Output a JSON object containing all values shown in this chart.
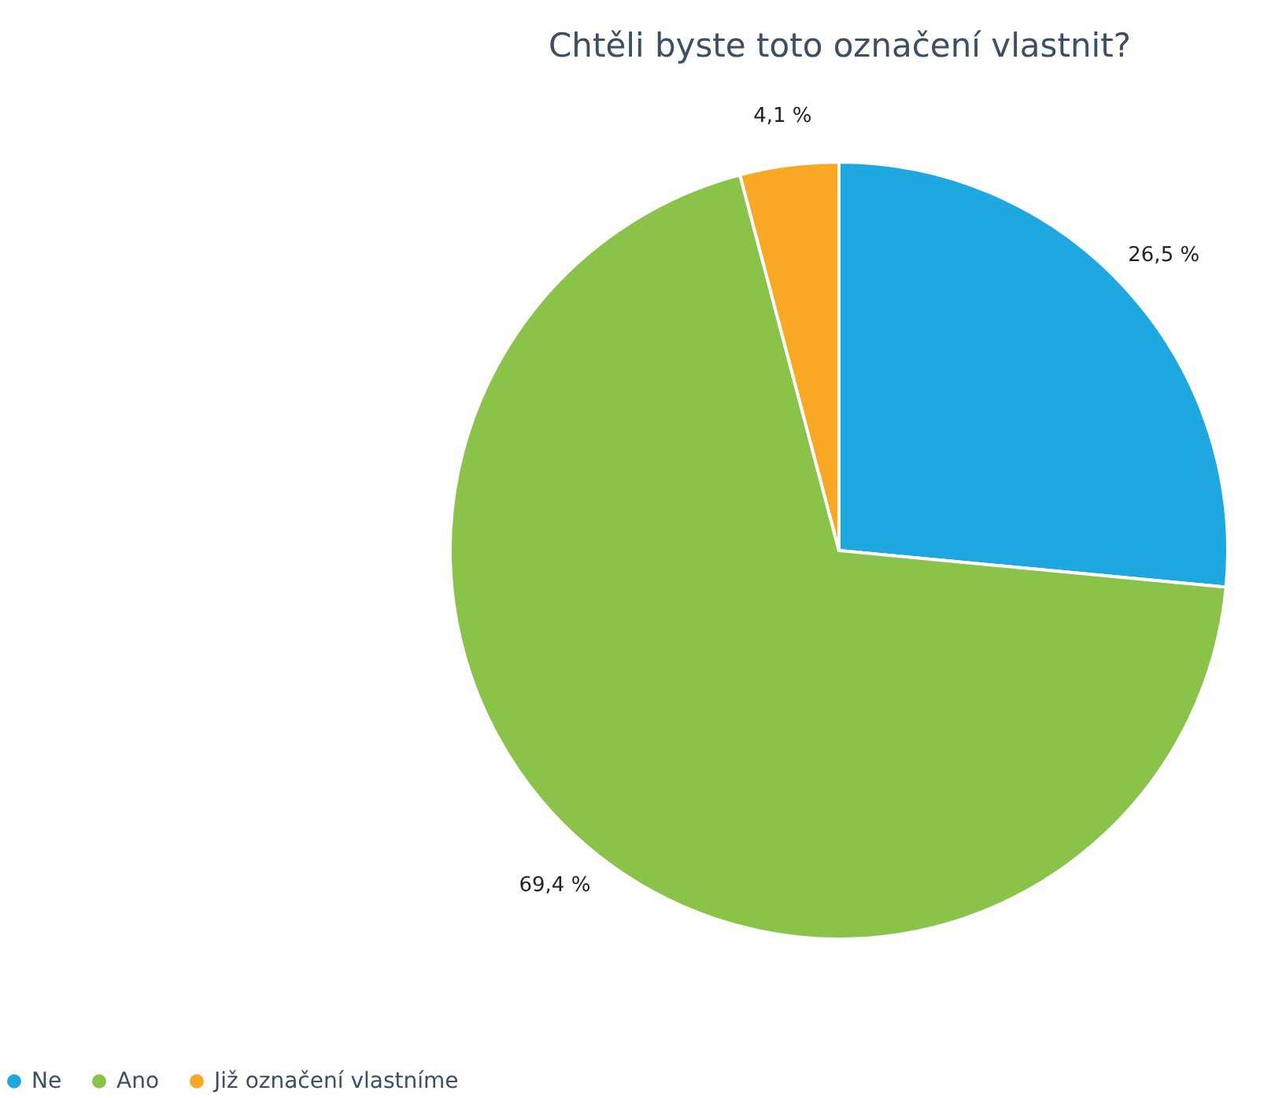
{
  "chart_data": {
    "type": "pie",
    "title": "Chtěli byste toto označení vlastnit?",
    "categories": [
      "Ne",
      "Ano",
      "Již označení vlastníme"
    ],
    "values": [
      26.5,
      69.4,
      4.1
    ],
    "colors": [
      "#1fa8e0",
      "#8bc34a",
      "#f9a825"
    ],
    "value_labels": [
      "26,5 %",
      "69,4 %",
      "4,1 %"
    ],
    "legend": "bottom left"
  }
}
